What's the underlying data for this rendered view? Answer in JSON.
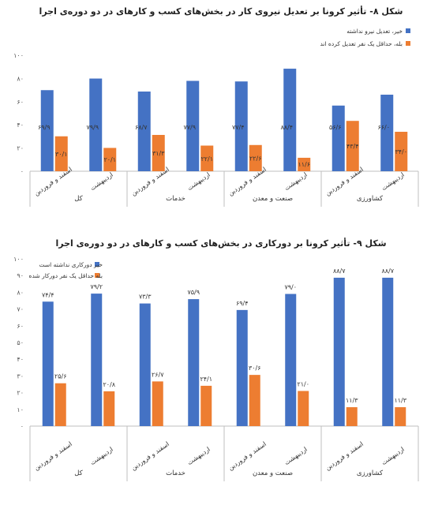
{
  "chart_data": [
    {
      "type": "bar",
      "title": "شکل ۸- تأثیر کرونا بر تعدیل نیروی کار در بخش‌های کسب و کارهای در دو دوره‌ی اجرا",
      "group_labels": [
        "کل",
        "خدمات",
        "صنعت و معدن",
        "کشاورزی"
      ],
      "categories": [
        "اسفند و فروردین",
        "اردیبهشت",
        "اسفند و فروردین",
        "اردیبهشت",
        "اسفند و فروردین",
        "اردیبهشت",
        "اسفند و فروردین",
        "اردیبهشت"
      ],
      "series": [
        {
          "name": "خیر، تعدیل نیرو نداشته",
          "color": "#4472c4",
          "values": [
            69.9,
            79.9,
            68.7,
            77.9,
            77.4,
            88.4,
            56.6,
            66.0
          ],
          "labels": [
            "۶۹/۹",
            "۷۹/۹",
            "۶۸/۷",
            "۷۷/۹",
            "۷۷/۴",
            "۸۸/۴",
            "۵۶/۶",
            "۶۶/۰"
          ]
        },
        {
          "name": "بله، حداقل یک نفر تعدیل کرده اند",
          "color": "#ed7d31",
          "values": [
            30.1,
            20.1,
            31.3,
            22.1,
            22.6,
            11.6,
            43.4,
            34.0
          ],
          "labels": [
            "۳۰/۱",
            "۲۰/۱",
            "۳۱/۳",
            "۲۲/۱",
            "۲۲/۶",
            "۱۱/۶",
            "۴۳/۴",
            "۳۴/۰"
          ]
        }
      ],
      "yticks": [
        "۰",
        "۲۰",
        "۴۰",
        "۶۰",
        "۸۰",
        "۱۰۰"
      ],
      "ylim": [
        0,
        100
      ],
      "grid": false,
      "legend": "top-right"
    },
    {
      "type": "bar",
      "title": "شکل ۹- تأثیر کرونا بر دورکاری در بخش‌های کسب و کارهای در دو دوره‌ی اجرا",
      "group_labels": [
        "کل",
        "خدمات",
        "صنعت و معدن",
        "کشاورزی"
      ],
      "categories": [
        "اسفند و فروردین",
        "اردیبهشت",
        "اسفند و فروردین",
        "اردیبهشت",
        "اسفند و فروردین",
        "اردیبهشت",
        "اسفند و فروردین",
        "اردیبهشت"
      ],
      "series": [
        {
          "name": "خیر دورکاری نداشته است",
          "color": "#4472c4",
          "values": [
            74.4,
            79.2,
            73.3,
            75.9,
            69.4,
            79.0,
            88.7,
            88.7
          ],
          "labels": [
            "۷۴/۴",
            "۷۹/۲",
            "۷۳/۳",
            "۷۵/۹",
            "۶۹/۴",
            "۷۹/۰",
            "۸۸/۷",
            "۸۸/۷"
          ]
        },
        {
          "name": "بله حداقل یک نفر دورکار شده",
          "color": "#ed7d31",
          "values": [
            25.6,
            20.8,
            26.7,
            24.1,
            30.6,
            21.0,
            11.3,
            11.3
          ],
          "labels": [
            "۲۵/۶",
            "۲۰/۸",
            "۲۶/۷",
            "۲۴/۱",
            "۳۰/۶",
            "۲۱/۰",
            "۱۱/۳",
            "۱۱/۳"
          ]
        }
      ],
      "yticks": [
        "۰",
        "۱۰",
        "۲۰",
        "۳۰",
        "۴۰",
        "۵۰",
        "۶۰",
        "۷۰",
        "۸۰",
        "۹۰",
        "۱۰۰"
      ],
      "ylim": [
        0,
        100
      ],
      "grid": false,
      "legend": "top-left"
    }
  ]
}
